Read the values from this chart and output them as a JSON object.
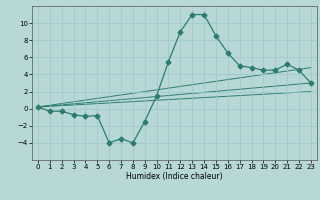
{
  "x": [
    0,
    1,
    2,
    3,
    4,
    5,
    6,
    7,
    8,
    9,
    10,
    11,
    12,
    13,
    14,
    15,
    16,
    17,
    18,
    19,
    20,
    21,
    22,
    23
  ],
  "y_main": [
    0.2,
    -0.3,
    -0.3,
    -0.7,
    -0.9,
    -0.8,
    -4.0,
    -3.5,
    -4.0,
    -1.5,
    1.5,
    5.5,
    9.0,
    11.0,
    11.0,
    8.5,
    6.5,
    5.0,
    4.8,
    4.5,
    4.5,
    5.2,
    4.5,
    3.0
  ],
  "line_color": "#2d7d6e",
  "bg_color": "#b8d8d8",
  "grid_color": "#9ec8c8",
  "marker": "D",
  "marker_size": 2.5,
  "xlabel": "Humidex (Indice chaleur)",
  "ylim": [
    -6,
    12
  ],
  "xlim": [
    -0.5,
    23.5
  ],
  "yticks": [
    -4,
    -2,
    0,
    2,
    4,
    6,
    8,
    10
  ],
  "xticks": [
    0,
    1,
    2,
    3,
    4,
    5,
    6,
    7,
    8,
    9,
    10,
    11,
    12,
    13,
    14,
    15,
    16,
    17,
    18,
    19,
    20,
    21,
    22,
    23
  ],
  "reg_line_color": "#2d7d6e",
  "reg1_start": 0.2,
  "reg1_end": 3.0,
  "reg2_start": 0.2,
  "reg2_end": 4.8,
  "reg3_start": 0.2,
  "reg3_end": 2.0
}
